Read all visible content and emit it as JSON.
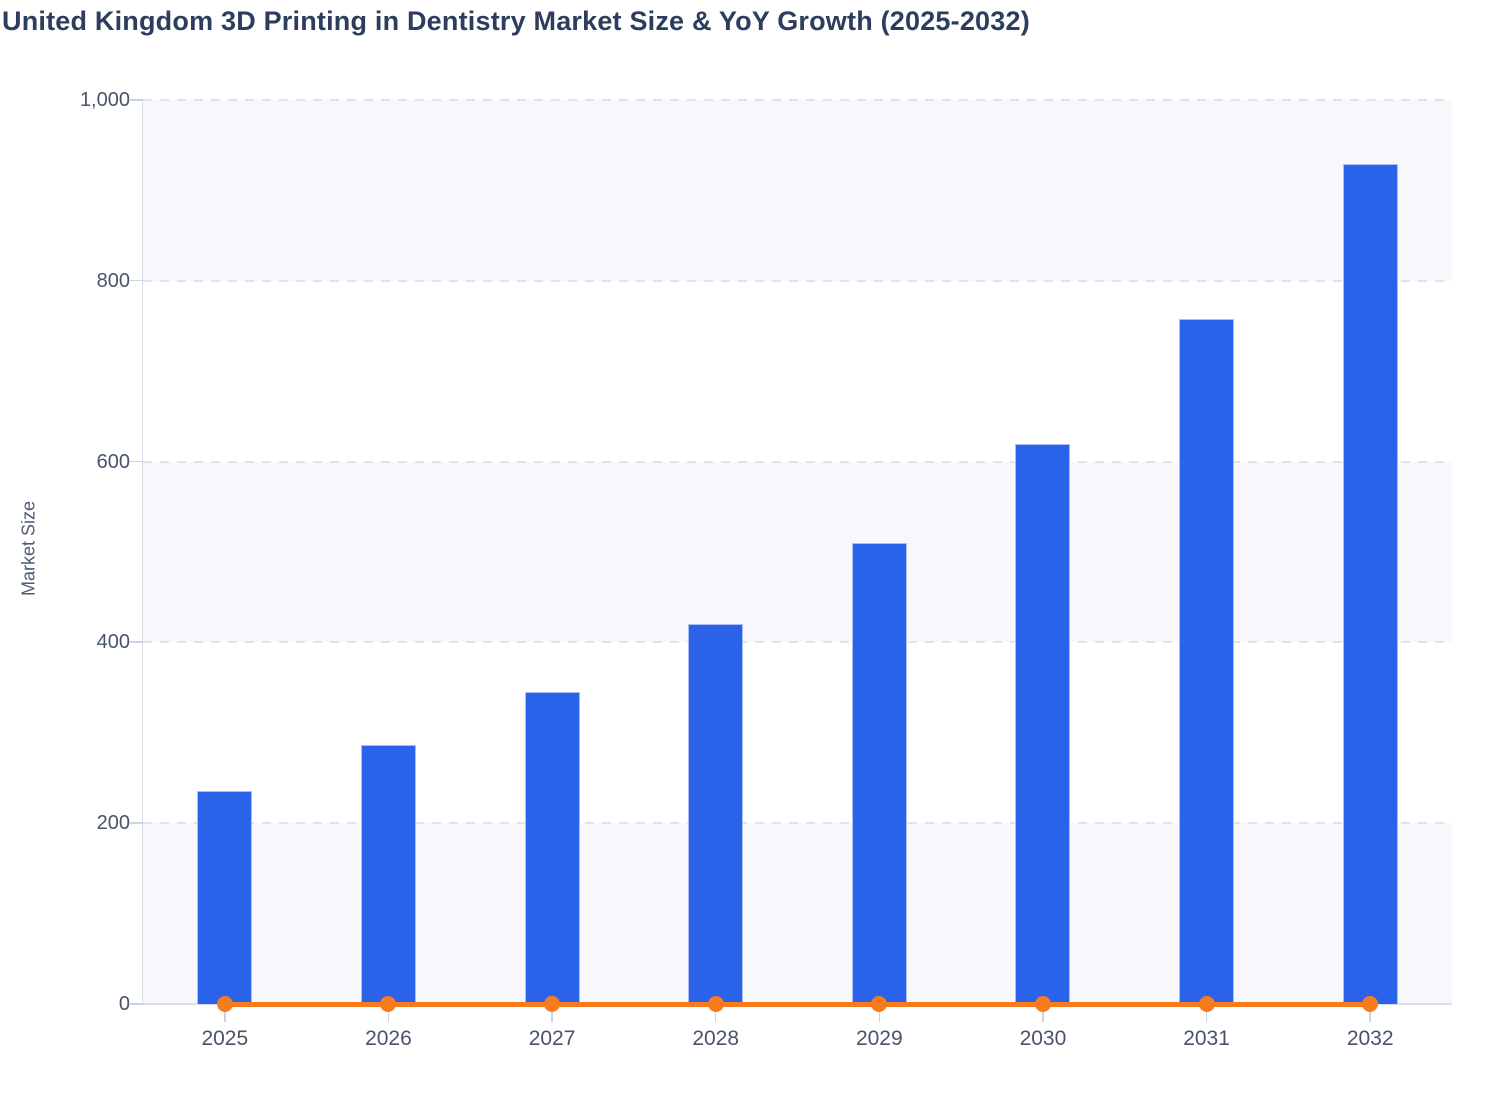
{
  "title": "United Kingdom 3D Printing in Dentistry Market Size & YoY Growth (2025-2032)",
  "chart_data": {
    "type": "bar",
    "title": "United Kingdom 3D Printing in Dentistry Market Size & YoY Growth (2025-2032)",
    "categories": [
      "2025",
      "2026",
      "2027",
      "2028",
      "2029",
      "2030",
      "2031",
      "2032"
    ],
    "series": [
      {
        "name": "Market Size",
        "type": "bar",
        "values": [
          236,
          287,
          345,
          420,
          510,
          620,
          758,
          929
        ]
      },
      {
        "name": "YoY Growth",
        "type": "line",
        "values_as_plotted": [
          0,
          0,
          0,
          0,
          0,
          0,
          0,
          0
        ],
        "note": "line renders flat along the zero baseline with a circular marker at each year"
      }
    ],
    "xlabel": "",
    "ylabel": "Market Size",
    "ylim": [
      0,
      1000
    ],
    "yticks": [
      0,
      200,
      400,
      600,
      800,
      1000
    ],
    "ytick_labels": [
      "0",
      "200",
      "400",
      "600",
      "800",
      "1,000"
    ],
    "grid": "horizontal dashed gridlines with alternating shaded bands (0-200, 400-600, 800-1000)",
    "legend": "none"
  },
  "colors": {
    "bar_fill": "#2A63EA",
    "bar_edge": "#A9BEF3",
    "line": "#F87C1D",
    "title_text": "#2C3D5E",
    "axis_text": "#485468",
    "axis_label_text": "#4C5A72",
    "grid_line": "#DFE3EC",
    "band_fill": "#F7F8FB",
    "axis_line": "#D8DDE9",
    "tick_mark": "#CBD3E0",
    "background": "#FFFFFF"
  }
}
